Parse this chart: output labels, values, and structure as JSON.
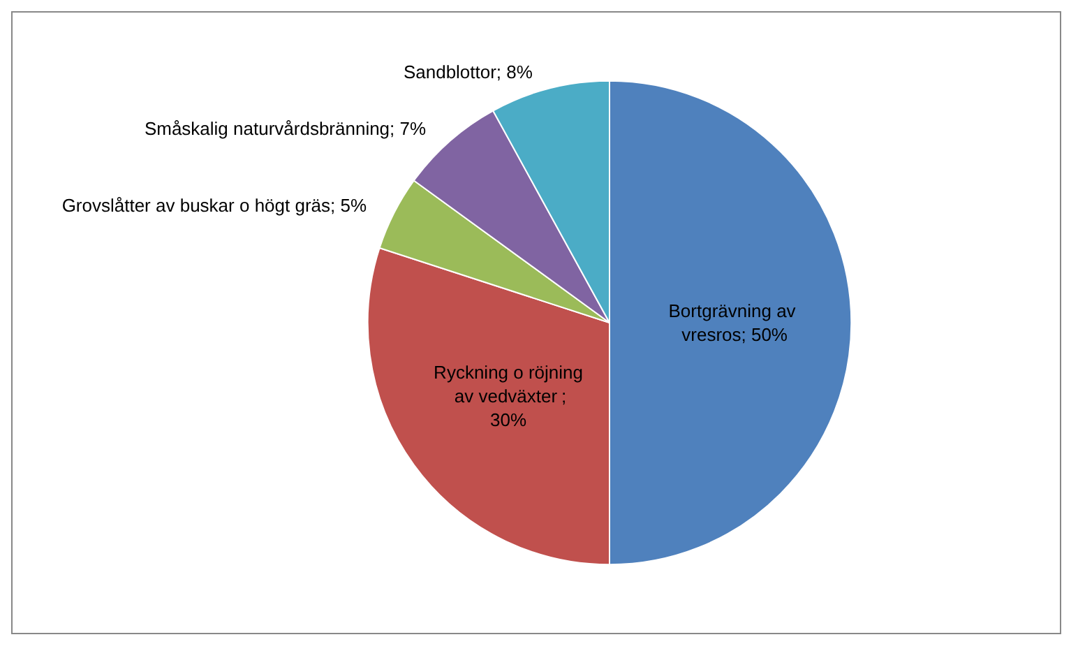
{
  "chart_data": {
    "type": "pie",
    "categories": [
      "Bortgrävning av vresros",
      "Ryckning o röjning av vedväxter",
      "Grovslåtter av buskar o högt gräs",
      "Småskalig naturvårdsbränning",
      "Sandblottor"
    ],
    "values": [
      50,
      30,
      5,
      7,
      8
    ],
    "colors": [
      "#4f81bd",
      "#c0504d",
      "#9bbb59",
      "#8064a2",
      "#4bacc6"
    ],
    "value_labels": [
      "; 50%",
      "; 30%",
      "; 5%",
      "; 7%",
      "; 8%"
    ],
    "legend": false
  }
}
